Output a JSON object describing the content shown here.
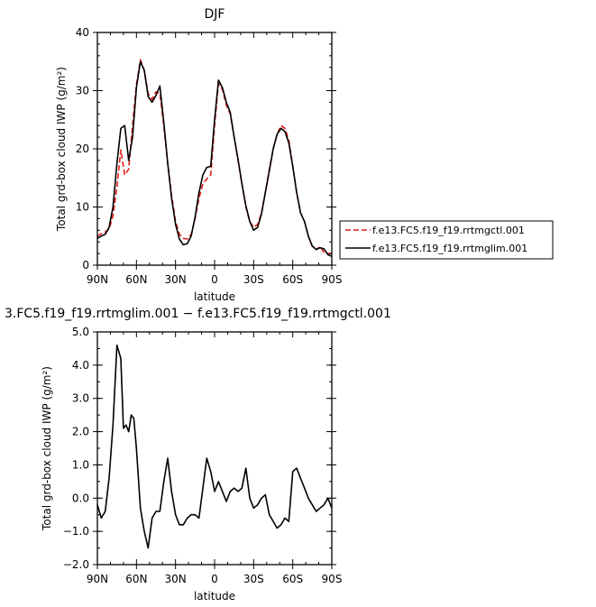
{
  "chart_data": [
    {
      "type": "line",
      "title": "DJF",
      "xlabel": "latitude",
      "ylabel": "Total grd-box cloud IWP (g/m²)",
      "x_ticks": [
        90,
        60,
        30,
        0,
        -30,
        -60,
        -90
      ],
      "x_tick_labels": [
        "90N",
        "60N",
        "30N",
        "0",
        "30S",
        "60S",
        "90S"
      ],
      "xlim": [
        90,
        -90
      ],
      "y_ticks": [
        0,
        10,
        20,
        30,
        40
      ],
      "y_tick_labels": [
        "0",
        "10",
        "20",
        "30",
        "40"
      ],
      "ylim": [
        0,
        40
      ],
      "legend_position": "right",
      "series": [
        {
          "name": "f.e13.FC5.f19_f19.rrtmgctl.001",
          "color": "#e41a1c",
          "dash": "dashed",
          "x": [
            90,
            87,
            84,
            81,
            78,
            75,
            72,
            69,
            66,
            63,
            60,
            57,
            54,
            51,
            48,
            45,
            42,
            39,
            36,
            33,
            30,
            27,
            24,
            21,
            18,
            15,
            12,
            9,
            6,
            3,
            0,
            -3,
            -6,
            -9,
            -12,
            -15,
            -18,
            -21,
            -24,
            -27,
            -30,
            -33,
            -36,
            -39,
            -42,
            -45,
            -48,
            -51,
            -54,
            -57,
            -60,
            -63,
            -66,
            -69,
            -72,
            -75,
            -78,
            -81,
            -84,
            -87,
            -90
          ],
          "y": [
            5.0,
            5.4,
            5.7,
            6.2,
            8.5,
            13.5,
            19.8,
            15.5,
            16.5,
            24.0,
            31.0,
            35.3,
            33.5,
            29.5,
            28.5,
            29.8,
            29.5,
            24.0,
            17.5,
            12.0,
            7.5,
            5.3,
            4.6,
            4.5,
            5.3,
            8.0,
            11.5,
            14.0,
            14.8,
            15.5,
            24.0,
            31.2,
            30.2,
            27.5,
            26.0,
            22.0,
            18.0,
            14.0,
            10.0,
            7.5,
            6.5,
            7.0,
            9.0,
            12.5,
            16.5,
            20.0,
            22.5,
            24.0,
            23.5,
            21.5,
            17.0,
            12.5,
            9.0,
            7.5,
            5.0,
            3.2,
            2.7,
            3.2,
            2.2,
            2.0,
            2.0
          ]
        },
        {
          "name": "f.e13.FC5.f19_f19.rrtmglim.001",
          "color": "#000000",
          "dash": "solid",
          "x": [
            90,
            87,
            84,
            81,
            78,
            75,
            72,
            69,
            66,
            63,
            60,
            57,
            54,
            51,
            48,
            45,
            42,
            39,
            36,
            33,
            30,
            27,
            24,
            21,
            18,
            15,
            12,
            9,
            6,
            3,
            0,
            -3,
            -6,
            -9,
            -12,
            -15,
            -18,
            -21,
            -24,
            -27,
            -30,
            -33,
            -36,
            -39,
            -42,
            -45,
            -48,
            -51,
            -54,
            -57,
            -60,
            -63,
            -66,
            -69,
            -72,
            -75,
            -78,
            -81,
            -84,
            -87,
            -90
          ],
          "y": [
            4.6,
            5.0,
            5.3,
            6.5,
            10.0,
            17.5,
            23.5,
            24.0,
            18.0,
            22.0,
            30.5,
            35.0,
            33.5,
            29.0,
            28.0,
            29.2,
            30.8,
            24.5,
            17.5,
            11.5,
            7.0,
            4.5,
            3.5,
            3.7,
            5.0,
            8.2,
            12.5,
            15.5,
            16.8,
            17.0,
            25.0,
            31.8,
            30.5,
            28.0,
            26.3,
            22.0,
            18.2,
            14.0,
            10.2,
            7.5,
            6.0,
            6.5,
            8.8,
            12.5,
            16.2,
            20.0,
            22.5,
            23.5,
            23.0,
            21.0,
            17.0,
            12.5,
            9.0,
            7.5,
            5.0,
            3.3,
            2.7,
            3.0,
            2.8,
            1.8,
            1.5
          ]
        }
      ]
    },
    {
      "type": "line",
      "title": "3.FC5.f19_f19.rrtmglim.001 − f.e13.FC5.f19_f19.rrtmgctl.001",
      "xlabel": "latitude",
      "ylabel": "Total grd-box cloud IWP (g/m²)",
      "x_ticks": [
        90,
        60,
        30,
        0,
        -30,
        -60,
        -90
      ],
      "x_tick_labels": [
        "90N",
        "60N",
        "30N",
        "0",
        "30S",
        "60S",
        "90S"
      ],
      "xlim": [
        90,
        -90
      ],
      "y_ticks": [
        -2,
        -1,
        0,
        1,
        2,
        3,
        4,
        5
      ],
      "y_tick_labels": [
        "−2.0",
        "−1.0",
        "0.0",
        "1.0",
        "2.0",
        "3.0",
        "4.0",
        "5.0"
      ],
      "ylim": [
        -2,
        5
      ],
      "series": [
        {
          "color": "#000000",
          "dash": "solid",
          "x": [
            90,
            87,
            84,
            81,
            78,
            75,
            72,
            70,
            68,
            66,
            64,
            62,
            60,
            57,
            54,
            51,
            48,
            45,
            42,
            39,
            36,
            33,
            30,
            27,
            24,
            21,
            18,
            15,
            12,
            9,
            6,
            3,
            0,
            -3,
            -6,
            -9,
            -12,
            -15,
            -18,
            -21,
            -24,
            -27,
            -30,
            -33,
            -36,
            -39,
            -42,
            -45,
            -48,
            -51,
            -54,
            -57,
            -60,
            -63,
            -66,
            -69,
            -72,
            -75,
            -78,
            -81,
            -84,
            -87,
            -90
          ],
          "y": [
            -0.2,
            -0.6,
            -0.4,
            0.6,
            2.2,
            4.6,
            4.2,
            2.1,
            2.2,
            2.0,
            2.5,
            2.4,
            1.5,
            -0.3,
            -1.0,
            -1.5,
            -0.6,
            -0.4,
            -0.4,
            0.5,
            1.2,
            0.2,
            -0.5,
            -0.8,
            -0.8,
            -0.6,
            -0.5,
            -0.5,
            -0.6,
            0.3,
            1.2,
            0.8,
            0.2,
            0.5,
            0.2,
            -0.1,
            0.2,
            0.3,
            0.2,
            0.3,
            0.9,
            0.0,
            -0.3,
            -0.2,
            0.0,
            0.1,
            -0.5,
            -0.7,
            -0.9,
            -0.8,
            -0.6,
            -0.7,
            0.8,
            0.9,
            0.6,
            0.3,
            0.0,
            -0.2,
            -0.4,
            -0.3,
            -0.2,
            0.0,
            -0.3
          ]
        }
      ]
    }
  ]
}
